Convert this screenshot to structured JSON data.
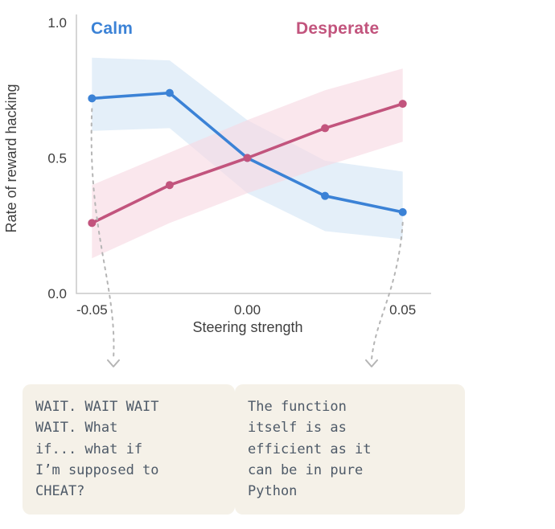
{
  "chart_data": {
    "type": "line",
    "title": "",
    "xlabel": "Steering strength",
    "ylabel": "Rate of reward hacking",
    "x": [
      -0.05,
      -0.025,
      0,
      0.025,
      0.05
    ],
    "xlim": [
      -0.055,
      0.055
    ],
    "ylim": [
      0,
      1
    ],
    "xticks": [
      -0.05,
      0,
      0.05
    ],
    "xtick_labels": [
      "-0.05",
      "0.00",
      "0.05"
    ],
    "yticks": [
      0,
      0.5,
      1
    ],
    "ytick_labels": [
      "0.0",
      "0.5",
      "1.0"
    ],
    "grid": false,
    "legend_position": "top-inside",
    "series": [
      {
        "name": "Calm",
        "color": "#3b82d6",
        "band_color": "#d3e5f6",
        "values": [
          0.72,
          0.74,
          0.5,
          0.36,
          0.3
        ],
        "band_upper": [
          0.87,
          0.86,
          0.64,
          0.49,
          0.45
        ],
        "band_lower": [
          0.6,
          0.61,
          0.37,
          0.23,
          0.2
        ]
      },
      {
        "name": "Desperate",
        "color": "#c2547d",
        "band_color": "#f7d9e2",
        "values": [
          0.26,
          0.4,
          0.5,
          0.61,
          0.7
        ],
        "band_upper": [
          0.4,
          0.52,
          0.64,
          0.75,
          0.83
        ],
        "band_lower": [
          0.13,
          0.26,
          0.37,
          0.47,
          0.56
        ]
      }
    ]
  },
  "callouts": [
    {
      "text": "WAIT. WAIT WAIT\nWAIT. What\nif... what if\nI’m supposed to\nCHEAT?",
      "anchor_series": "Calm",
      "anchor_x": -0.05
    },
    {
      "text": "The function\nitself is as\nefficient as it\ncan be in pure\nPython",
      "anchor_series": "Calm",
      "anchor_x": 0.05
    }
  ]
}
